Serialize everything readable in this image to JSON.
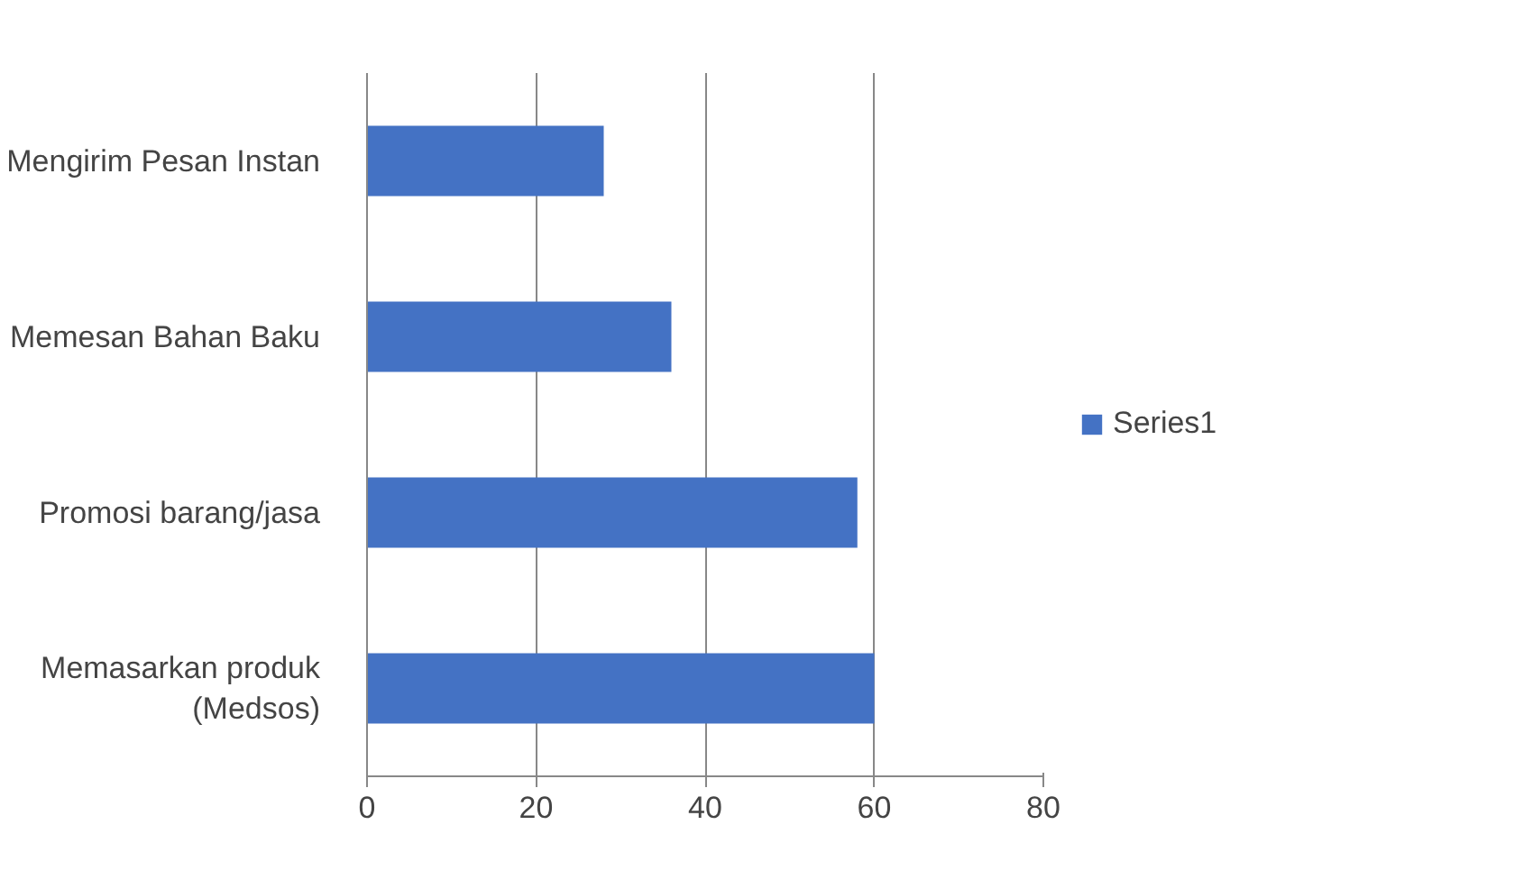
{
  "chart_data": {
    "type": "bar",
    "orientation": "horizontal",
    "categories": [
      "Mengirim Pesan Instan",
      "Memesan Bahan Baku",
      "Promosi barang/jasa",
      "Memasarkan produk\n(Medsos)"
    ],
    "series": [
      {
        "name": "Series1",
        "color": "#4472c4",
        "values": [
          28,
          36,
          58,
          60
        ]
      }
    ],
    "xlim": [
      0,
      80
    ],
    "xticks": [
      0,
      20,
      40,
      60,
      80
    ],
    "grid": "x",
    "legend": "right"
  }
}
